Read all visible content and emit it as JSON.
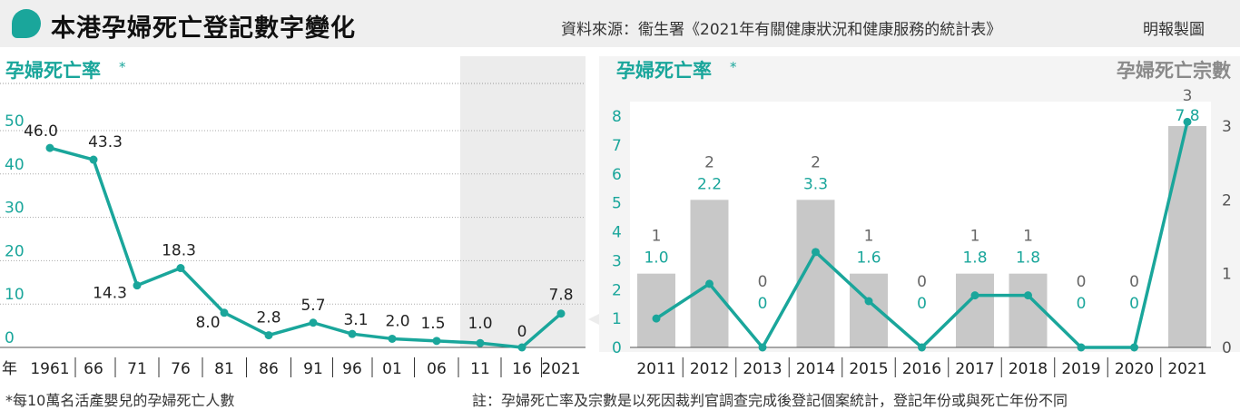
{
  "header": {
    "title": "本港孕婦死亡登記數字變化",
    "source": "資料來源：衞生署《2021年有關健康狀況和健康服務的統計表》",
    "credit": "明報製圖"
  },
  "footnote": "*每10萬名活產嬰兒的孕婦死亡人數",
  "note": "註：孕婦死亡率及宗數是以死因裁判官調查完成後登記個案統計，登記年份或與死亡年份不同",
  "colors": {
    "teal": "#1aa69b",
    "bar": "#c8c8c8",
    "band": "#ececec",
    "header": "#efefef"
  },
  "chart_data": [
    {
      "type": "line",
      "title": "孕婦死亡率",
      "title_mark": "*",
      "xlabel": "年",
      "categories": [
        "1961",
        "66",
        "71",
        "76",
        "81",
        "86",
        "91",
        "96",
        "01",
        "06",
        "11",
        "16",
        "2021"
      ],
      "series": [
        {
          "values": [
            46.0,
            43.3,
            14.3,
            18.3,
            8.0,
            2.8,
            5.7,
            3.1,
            2.0,
            1.5,
            1.0,
            0,
            7.8
          ],
          "labels": [
            "46.0",
            "43.3",
            "14.3",
            "18.3",
            "8.0",
            "2.8",
            "5.7",
            "3.1",
            "2.0",
            "1.5",
            "1.0",
            "0",
            "7.8"
          ]
        }
      ],
      "yticks": [
        0,
        10,
        20,
        30,
        40,
        50
      ],
      "ylim": [
        0,
        50
      ],
      "grid": true,
      "shaded_from": "11"
    },
    {
      "type": "bar",
      "title_left": "孕婦死亡率",
      "title_left_mark": "*",
      "title_right": "孕婦死亡宗數",
      "categories": [
        "2011",
        "2012",
        "2013",
        "2014",
        "2015",
        "2016",
        "2017",
        "2018",
        "2019",
        "2020",
        "2021"
      ],
      "series": [
        {
          "name": "孕婦死亡宗數",
          "type": "bar",
          "axis": "right",
          "values": [
            1,
            2,
            0,
            2,
            1,
            0,
            1,
            1,
            0,
            0,
            3
          ]
        },
        {
          "name": "孕婦死亡率",
          "type": "line",
          "axis": "left",
          "values": [
            1.0,
            2.2,
            0,
            3.3,
            1.6,
            0,
            1.8,
            1.8,
            0,
            0,
            7.8
          ],
          "labels": [
            "1.0",
            "2.2",
            "",
            "3.3",
            "1.6",
            "",
            "1.8",
            "1.8",
            "",
            "",
            "7.8"
          ]
        }
      ],
      "count_labels": [
        "1",
        "2",
        "0",
        "2",
        "1",
        "0",
        "1",
        "1",
        "0",
        "0",
        "3"
      ],
      "zero_rate_labels": [
        "",
        "",
        "0",
        "",
        "",
        "0",
        "",
        "",
        "0",
        "0",
        ""
      ],
      "yticks_left": [
        0,
        1,
        2,
        3,
        4,
        5,
        6,
        7,
        8
      ],
      "ylim_left": [
        0,
        8
      ],
      "yticks_right": [
        0,
        1,
        2,
        3
      ],
      "ylim_right": [
        0,
        3
      ]
    }
  ]
}
